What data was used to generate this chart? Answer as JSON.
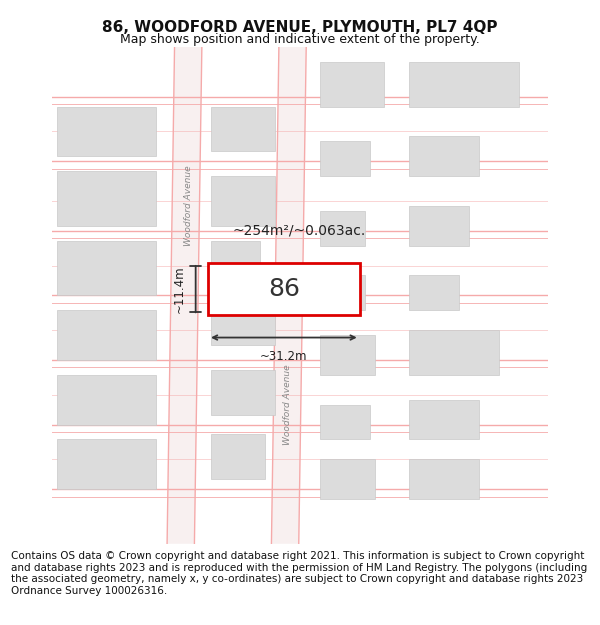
{
  "title": "86, WOODFORD AVENUE, PLYMOUTH, PL7 4QP",
  "subtitle": "Map shows position and indicative extent of the property.",
  "footer": "Contains OS data © Crown copyright and database right 2021. This information is subject to Crown copyright and database rights 2023 and is reproduced with the permission of HM Land Registry. The polygons (including the associated geometry, namely x, y co-ordinates) are subject to Crown copyright and database rights 2023 Ordnance Survey 100026316.",
  "bg_color": "#ffffff",
  "map_bg": "#ffffff",
  "road_line_color": "#f5aaaa",
  "building_color": "#dcdcdc",
  "building_edge_color": "#c8c8c8",
  "plot_color": "#ffffff",
  "plot_edge_color": "#dd0000",
  "road_label": "Woodford Avenue",
  "plot_label": "86",
  "area_label": "~254m²/~0.063ac.",
  "width_label": "~31.2m",
  "height_label": "~11.4m",
  "title_fontsize": 11,
  "subtitle_fontsize": 9,
  "footer_fontsize": 7.5
}
